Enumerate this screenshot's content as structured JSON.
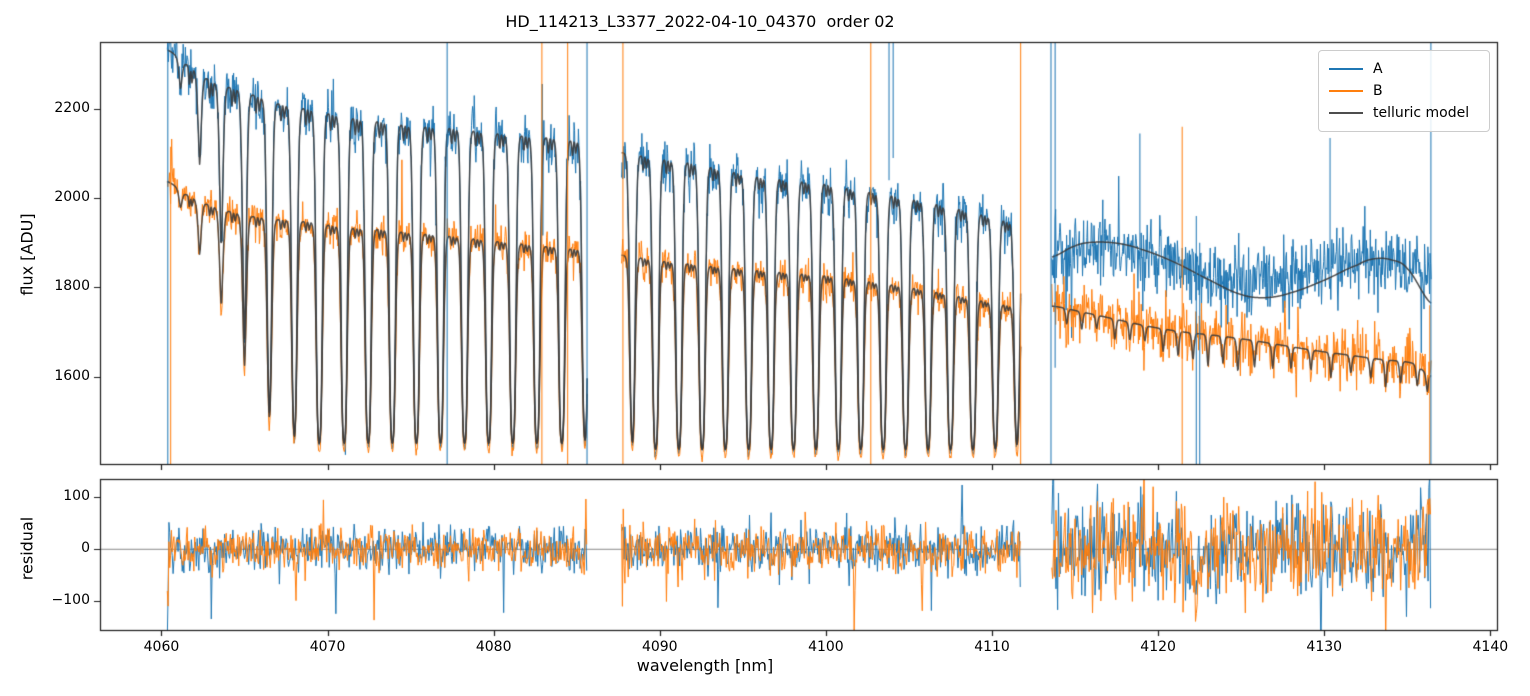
{
  "chart_data": {
    "type": "line",
    "title": "HD_114213_L3377_2022-04-10_04370  order 02",
    "xlabel": "wavelength [nm]",
    "ylabel_top": "flux [ADU]",
    "ylabel_bottom": "residual",
    "xlim": [
      4056.3,
      4140.4
    ],
    "x_ticks": [
      4060,
      4070,
      4080,
      4090,
      4100,
      4110,
      4120,
      4130,
      4140
    ],
    "top_panel": {
      "ylim": [
        1404,
        2350
      ],
      "yticks": [
        {
          "v": 1600,
          "label": "1600"
        },
        {
          "v": 1800,
          "label": "1800"
        },
        {
          "v": 2000,
          "label": "2000"
        },
        {
          "v": 2200,
          "label": "2200"
        }
      ],
      "grid": false
    },
    "residual_panel": {
      "ylim": [
        -155,
        135
      ],
      "yticks": [
        {
          "v": -100,
          "label": "−100"
        },
        {
          "v": 0,
          "label": "0"
        },
        {
          "v": 100,
          "label": "100"
        }
      ],
      "zero_line": true,
      "grid": false
    },
    "legend": {
      "position": "upper right",
      "entries": [
        {
          "label": "A",
          "color": "#1f77b4"
        },
        {
          "label": "B",
          "color": "#ff7f0e"
        },
        {
          "label": "telluric model",
          "color": "#4d4d4d"
        }
      ]
    },
    "colors": {
      "A": "#1f77b4",
      "B": "#ff7f0e",
      "model": "#3b3b3b",
      "spine": "#1a1a1a",
      "zero_line": "#888888"
    },
    "line_profile": {
      "width_nm": 0.13,
      "power": 1.5,
      "minor_offsets": [
        0.46,
        0.6
      ],
      "minor_tau": [
        0.05,
        0.04
      ],
      "minor_width_nm": 0.055
    },
    "segments": [
      {
        "range": [
          4060.35,
          4085.65
        ],
        "floor": 1445,
        "A_continuum": [
          [
            4060.35,
            2332
          ],
          [
            4061.5,
            2300
          ],
          [
            4063,
            2262
          ],
          [
            4065,
            2238
          ],
          [
            4067,
            2212
          ],
          [
            4069,
            2198
          ],
          [
            4071,
            2182
          ],
          [
            4073,
            2172
          ],
          [
            4075,
            2162
          ],
          [
            4077,
            2158
          ],
          [
            4079,
            2150
          ],
          [
            4081,
            2142
          ],
          [
            4083,
            2136
          ],
          [
            4085.65,
            2126
          ]
        ],
        "B_continuum": [
          [
            4060.35,
            2037
          ],
          [
            4061.5,
            2008
          ],
          [
            4063,
            1982
          ],
          [
            4065,
            1962
          ],
          [
            4067,
            1952
          ],
          [
            4069,
            1946
          ],
          [
            4071,
            1934
          ],
          [
            4073,
            1930
          ],
          [
            4075,
            1922
          ],
          [
            4077,
            1916
          ],
          [
            4079,
            1908
          ],
          [
            4081,
            1900
          ],
          [
            4083,
            1892
          ],
          [
            4085.65,
            1884
          ]
        ],
        "lines_tau": [
          [
            4061.15,
            0.08
          ],
          [
            4062.3,
            0.28
          ],
          [
            4063.6,
            0.6
          ],
          [
            4065.0,
            1.2
          ],
          [
            4066.5,
            2.4
          ],
          [
            4068.0,
            3.6
          ],
          [
            4069.5,
            5
          ],
          [
            4071.0,
            5
          ],
          [
            4072.45,
            5
          ],
          [
            4073.9,
            5
          ],
          [
            4075.35,
            5
          ],
          [
            4076.8,
            5
          ],
          [
            4078.25,
            5
          ],
          [
            4079.7,
            5
          ],
          [
            4081.15,
            5
          ],
          [
            4082.6,
            5
          ],
          [
            4084.1,
            5
          ],
          [
            4085.5,
            4
          ]
        ],
        "sigmaA": 27,
        "sigmaB": 21,
        "res_sigma": 20
      },
      {
        "range": [
          4087.7,
          4111.75
        ],
        "floor": 1432,
        "A_continuum": [
          [
            4087.7,
            2102
          ],
          [
            4090,
            2088
          ],
          [
            4092,
            2078
          ],
          [
            4094,
            2062
          ],
          [
            4096,
            2048
          ],
          [
            4098,
            2040
          ],
          [
            4100,
            2032
          ],
          [
            4102,
            2018
          ],
          [
            4104,
            2006
          ],
          [
            4106,
            1992
          ],
          [
            4108,
            1976
          ],
          [
            4110,
            1958
          ],
          [
            4111.75,
            1942
          ]
        ],
        "B_continuum": [
          [
            4087.7,
            1872
          ],
          [
            4090,
            1860
          ],
          [
            4092,
            1852
          ],
          [
            4094,
            1844
          ],
          [
            4096,
            1838
          ],
          [
            4098,
            1832
          ],
          [
            4100,
            1826
          ],
          [
            4102,
            1816
          ],
          [
            4104,
            1806
          ],
          [
            4106,
            1794
          ],
          [
            4108,
            1780
          ],
          [
            4110,
            1766
          ],
          [
            4111.75,
            1756
          ]
        ],
        "lines_tau": [
          [
            4088.35,
            3.5
          ],
          [
            4089.75,
            5
          ],
          [
            4091.15,
            5
          ],
          [
            4092.55,
            5
          ],
          [
            4093.95,
            5
          ],
          [
            4095.35,
            5
          ],
          [
            4096.7,
            5
          ],
          [
            4098.05,
            5
          ],
          [
            4099.4,
            5
          ],
          [
            4100.75,
            5
          ],
          [
            4102.1,
            5
          ],
          [
            4103.45,
            5
          ],
          [
            4104.8,
            5
          ],
          [
            4106.15,
            5
          ],
          [
            4107.5,
            5
          ],
          [
            4108.85,
            5
          ],
          [
            4110.2,
            4.5
          ],
          [
            4111.5,
            3.5
          ]
        ],
        "sigmaA": 27,
        "sigmaB": 21,
        "res_sigma": 22
      },
      {
        "range": [
          4113.6,
          4136.45
        ],
        "smooth_A_model": true,
        "A_model": [
          [
            4113.6,
            1868
          ],
          [
            4115,
            1893
          ],
          [
            4116,
            1901
          ],
          [
            4117.5,
            1899
          ],
          [
            4119,
            1885
          ],
          [
            4121,
            1856
          ],
          [
            4123,
            1818
          ],
          [
            4125,
            1784
          ],
          [
            4126.5,
            1777
          ],
          [
            4128,
            1788
          ],
          [
            4130,
            1816
          ],
          [
            4132,
            1850
          ],
          [
            4133,
            1864
          ],
          [
            4134,
            1862
          ],
          [
            4135,
            1842
          ],
          [
            4136.45,
            1764
          ]
        ],
        "A_envelope": [
          [
            4113.6,
            1882
          ],
          [
            4115.5,
            1888
          ],
          [
            4117.5,
            1884
          ],
          [
            4119.5,
            1872
          ],
          [
            4121.5,
            1846
          ],
          [
            4123.5,
            1818
          ],
          [
            4125.5,
            1806
          ],
          [
            4127.5,
            1815
          ],
          [
            4129.5,
            1840
          ],
          [
            4131.5,
            1852
          ],
          [
            4133.5,
            1852
          ],
          [
            4135,
            1845
          ],
          [
            4136.45,
            1832
          ]
        ],
        "B_continuum": [
          [
            4113.6,
            1758
          ],
          [
            4115.5,
            1744
          ],
          [
            4117.5,
            1728
          ],
          [
            4119.5,
            1712
          ],
          [
            4121.5,
            1700
          ],
          [
            4123.5,
            1692
          ],
          [
            4125.5,
            1682
          ],
          [
            4127.5,
            1670
          ],
          [
            4129.5,
            1658
          ],
          [
            4131.5,
            1648
          ],
          [
            4133.5,
            1638
          ],
          [
            4135.3,
            1630
          ],
          [
            4136.45,
            1602
          ]
        ],
        "B_lines_adu": [
          [
            4114.5,
            35
          ],
          [
            4115.4,
            40
          ],
          [
            4116.3,
            30
          ],
          [
            4117.4,
            45
          ],
          [
            4118.3,
            40
          ],
          [
            4119.2,
            35
          ],
          [
            4120.3,
            50
          ],
          [
            4121.2,
            55
          ],
          [
            4122.1,
            60
          ],
          [
            4123.0,
            70
          ],
          [
            4123.9,
            60
          ],
          [
            4124.8,
            75
          ],
          [
            4125.8,
            60
          ],
          [
            4126.9,
            55
          ],
          [
            4128.0,
            50
          ],
          [
            4129.2,
            45
          ],
          [
            4130.4,
            55
          ],
          [
            4131.6,
            40
          ],
          [
            4132.8,
            45
          ],
          [
            4133.7,
            60
          ],
          [
            4134.6,
            50
          ],
          [
            4135.6,
            45
          ],
          [
            4136.2,
            40
          ]
        ],
        "sigmaA": 37,
        "sigmaB": 30,
        "res_sigma": 46
      }
    ],
    "artifact_spikes_top": [
      {
        "series": "A",
        "x": 4060.38,
        "v0": 1404,
        "v1": 2350
      },
      {
        "series": "B",
        "x": 4060.55,
        "v0": 1404,
        "v1": 2115
      },
      {
        "series": "A",
        "x": 4077.2,
        "v0": 1404,
        "v1": 2350
      },
      {
        "series": "B",
        "x": 4082.9,
        "v0": 1404,
        "v1": 2350
      },
      {
        "series": "B",
        "x": 4084.45,
        "v0": 1404,
        "v1": 2350
      },
      {
        "series": "A",
        "x": 4085.62,
        "v0": 1404,
        "v1": 2350
      },
      {
        "series": "B",
        "x": 4087.78,
        "v0": 1404,
        "v1": 2350
      },
      {
        "series": "B",
        "x": 4102.7,
        "v0": 1404,
        "v1": 2350
      },
      {
        "series": "A",
        "x": 4103.8,
        "v0": 2040,
        "v1": 2350
      },
      {
        "series": "A",
        "x": 4104.05,
        "v0": 2090,
        "v1": 2350
      },
      {
        "series": "B",
        "x": 4111.72,
        "v0": 1404,
        "v1": 2350
      },
      {
        "series": "A",
        "x": 4113.55,
        "v0": 1404,
        "v1": 2350
      },
      {
        "series": "A",
        "x": 4113.8,
        "v0": 1620,
        "v1": 2350
      },
      {
        "series": "A",
        "x": 4118.9,
        "v0": 1870,
        "v1": 2145
      },
      {
        "series": "B",
        "x": 4121.45,
        "v0": 1404,
        "v1": 2160
      },
      {
        "series": "A",
        "x": 4122.3,
        "v0": 1404,
        "v1": 1960
      },
      {
        "series": "A",
        "x": 4122.5,
        "v0": 1404,
        "v1": 1900
      },
      {
        "series": "A",
        "x": 4130.35,
        "v0": 1835,
        "v1": 2135
      },
      {
        "series": "B",
        "x": 4136.35,
        "v0": 1404,
        "v1": 1760
      },
      {
        "series": "A",
        "x": 4136.42,
        "v0": 1404,
        "v1": 2350
      }
    ],
    "residual_events": [
      {
        "series": "A",
        "x": 4063.0,
        "v": -120
      },
      {
        "series": "B",
        "x": 4068.1,
        "v": -140
      },
      {
        "series": "A",
        "x": 4070.5,
        "v": -105
      },
      {
        "series": "B",
        "x": 4072.8,
        "v": -140
      },
      {
        "series": "A",
        "x": 4080.6,
        "v": -115
      },
      {
        "series": "A",
        "x": 4093.5,
        "v": -125
      },
      {
        "series": "B",
        "x": 4101.7,
        "v": -140
      },
      {
        "series": "B",
        "x": 4105.8,
        "v": -120
      },
      {
        "series": "A",
        "x": 4108.2,
        "v": 110
      },
      {
        "series": "A",
        "x": 4122.3,
        "v": -50,
        "w": 0.55
      },
      {
        "series": "B",
        "x": 4122.35,
        "v": -75,
        "w": 0.5
      }
    ]
  }
}
